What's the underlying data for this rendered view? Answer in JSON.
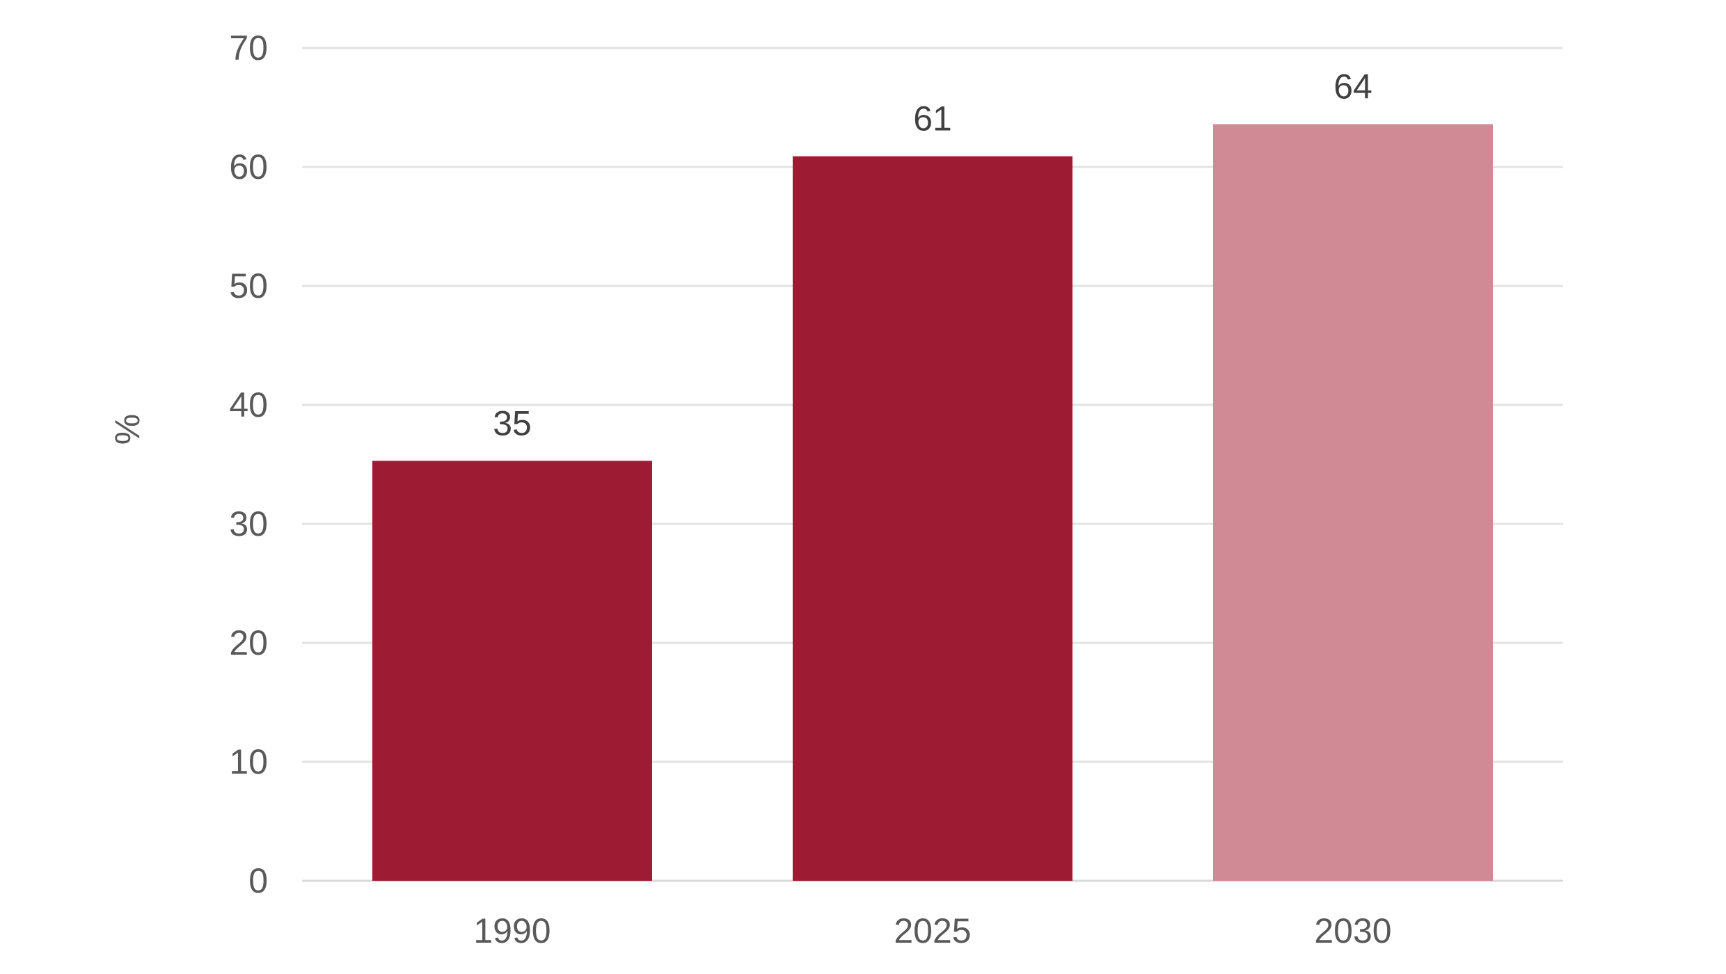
{
  "chart_data": {
    "type": "bar",
    "title": "",
    "xlabel": "",
    "ylabel": "%",
    "ylim": [
      0,
      70
    ],
    "yticks": [
      0,
      10,
      20,
      30,
      40,
      50,
      60,
      70
    ],
    "categories": [
      "1990",
      "2025",
      "2030"
    ],
    "values": [
      35,
      61,
      64
    ],
    "value_precise": [
      35.3,
      60.9,
      63.6
    ],
    "data_labels": [
      "35",
      "61",
      "64"
    ],
    "bar_colors": [
      "#9e1b34",
      "#9e1b34",
      "#d08a96"
    ],
    "grid": true,
    "legend": "none"
  }
}
